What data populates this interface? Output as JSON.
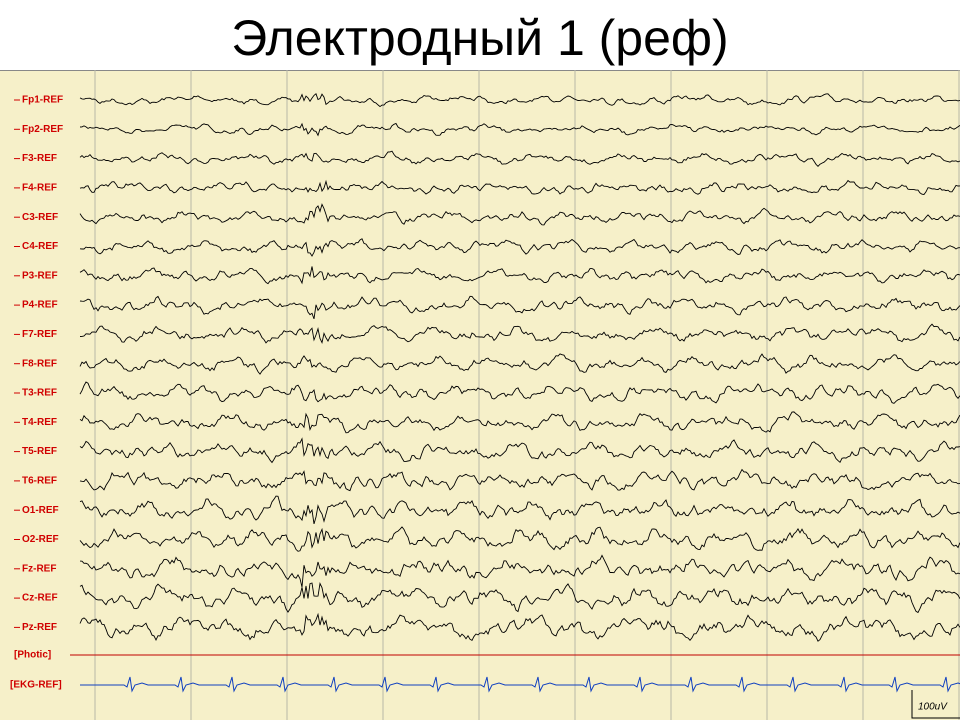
{
  "title": "Электродный 1 (реф)",
  "channels": [
    "Fp1-REF",
    "Fp2-REF",
    "F3-REF",
    "F4-REF",
    "C3-REF",
    "C4-REF",
    "P3-REF",
    "P4-REF",
    "F7-REF",
    "F8-REF",
    "T3-REF",
    "T4-REF",
    "T5-REF",
    "T6-REF",
    "O1-REF",
    "O2-REF",
    "Fz-REF",
    "Cz-REF",
    "Pz-REF"
  ],
  "photic": "[Photic]",
  "ekg": "[EKG-REF]",
  "scale": "100uV"
}
